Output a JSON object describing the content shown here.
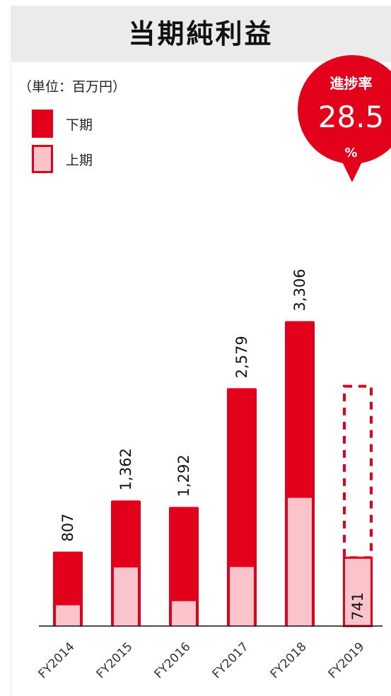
{
  "header": {
    "title": "当期純利益"
  },
  "unit_label": "（単位：百万円）",
  "legend": [
    {
      "label": "下期"
    },
    {
      "label": "上期"
    }
  ],
  "progress_badge": {
    "label": "進捗率",
    "value": "28.5",
    "unit": "%"
  },
  "colors": {
    "second_half": "#e3001b",
    "first_half": "#fbc4cb",
    "header_bg": "#ebebeb"
  },
  "chart_data": {
    "type": "bar",
    "stacked": true,
    "title": "当期純利益",
    "categories": [
      "FY2014",
      "FY2015",
      "FY2016",
      "FY2017",
      "FY2018",
      "FY2019"
    ],
    "totals": [
      807,
      1362,
      1292,
      2579,
      3306,
      741
    ],
    "total_labels": [
      "807",
      "1,362",
      "1,292",
      "2,579",
      "3,306",
      "741"
    ],
    "series": [
      {
        "name": "上期",
        "values": [
          225,
          635,
          270,
          640,
          1390,
          741
        ]
      },
      {
        "name": "下期",
        "values": [
          582,
          727,
          1022,
          1939,
          1916,
          null
        ]
      }
    ],
    "forecast_placeholder": {
      "category": "FY2019",
      "total_estimate": 2600,
      "style": "dashed"
    },
    "ylim": [
      0,
      3800
    ],
    "grid": false,
    "legend_position": "top-left"
  }
}
